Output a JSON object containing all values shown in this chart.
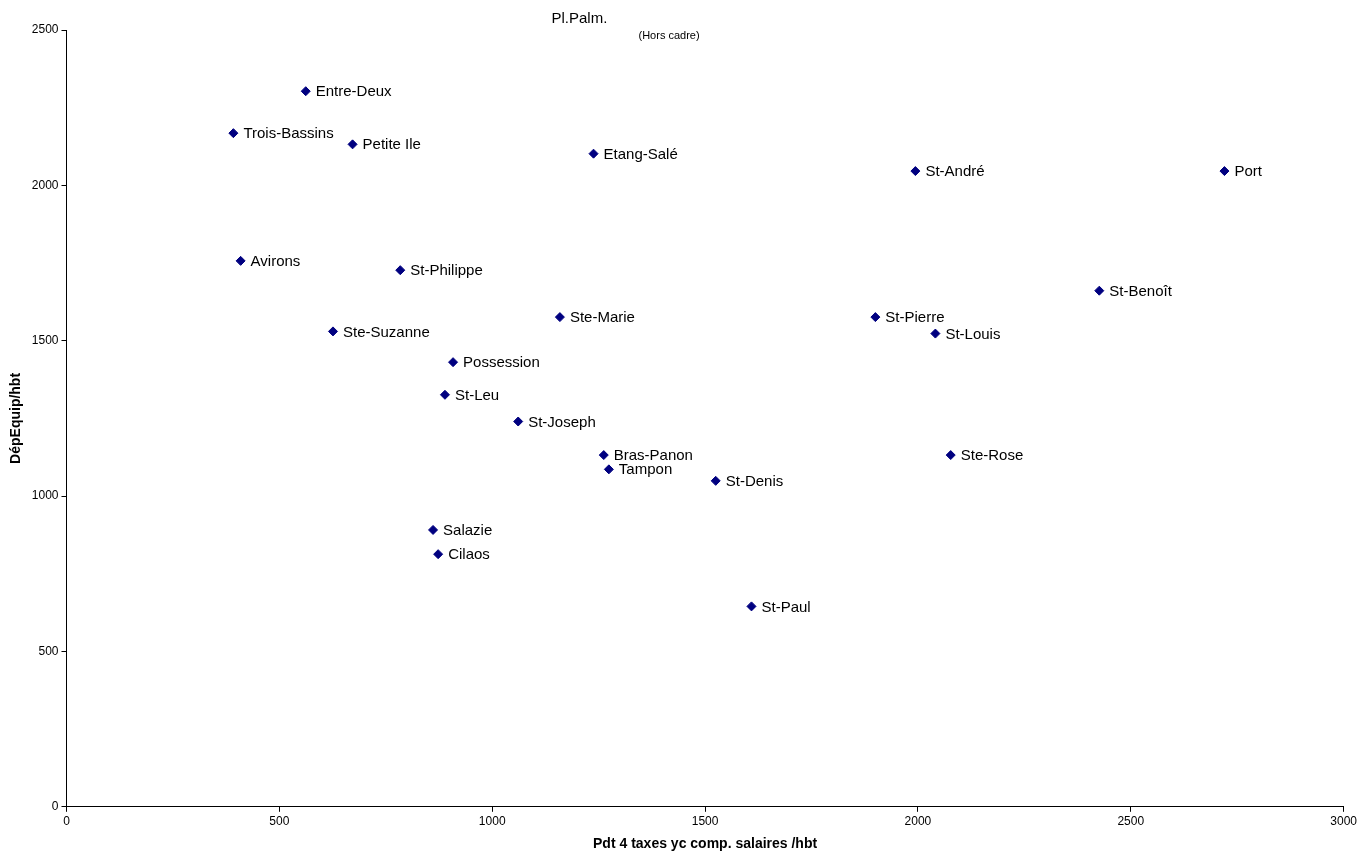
{
  "chart_data": {
    "type": "scatter",
    "xlabel": "Pdt 4 taxes yc comp. salaires /hbt",
    "ylabel": "DépEquip/hbt",
    "annotations": [
      "Pl.Palm.",
      "(Hors cadre)"
    ],
    "xlim": [
      0,
      3000
    ],
    "xticks": [
      0,
      500,
      1000,
      1500,
      2000,
      2500,
      3000
    ],
    "ylim": [
      0,
      2500
    ],
    "yticks": [
      0,
      500,
      1000,
      1500,
      2000,
      2500
    ],
    "grid": false,
    "legend": false,
    "marker": "diamond",
    "series": [
      {
        "name": "Entre-Deux",
        "color": "#000080",
        "x": [
          562
        ],
        "values": [
          2303
        ]
      },
      {
        "name": "Trois-Bassins",
        "color": "#000080",
        "x": [
          392
        ],
        "values": [
          2168
        ]
      },
      {
        "name": "Petite Ile",
        "color": "#000080",
        "x": [
          672
        ],
        "values": [
          2132
        ]
      },
      {
        "name": "Etang-Salé",
        "color": "#000080",
        "x": [
          1238
        ],
        "values": [
          2102
        ]
      },
      {
        "name": "St-André",
        "color": "#000080",
        "x": [
          1994
        ],
        "values": [
          2046
        ]
      },
      {
        "name": "Port",
        "color": "#000080",
        "x": [
          2720
        ],
        "values": [
          2046
        ]
      },
      {
        "name": "Avirons",
        "color": "#000080",
        "x": [
          409
        ],
        "values": [
          1757
        ]
      },
      {
        "name": "St-Philippe",
        "color": "#000080",
        "x": [
          784
        ],
        "values": [
          1727
        ]
      },
      {
        "name": "St-Benoît",
        "color": "#000080",
        "x": [
          2426
        ],
        "values": [
          1661
        ]
      },
      {
        "name": "Ste-Marie",
        "color": "#000080",
        "x": [
          1159
        ],
        "values": [
          1576
        ]
      },
      {
        "name": "St-Pierre",
        "color": "#000080",
        "x": [
          1900
        ],
        "values": [
          1576
        ]
      },
      {
        "name": "St-Louis",
        "color": "#000080",
        "x": [
          2041
        ],
        "values": [
          1523
        ]
      },
      {
        "name": "Ste-Suzanne",
        "color": "#000080",
        "x": [
          626
        ],
        "values": [
          1530
        ]
      },
      {
        "name": "Possession",
        "color": "#000080",
        "x": [
          908
        ],
        "values": [
          1431
        ]
      },
      {
        "name": "St-Leu",
        "color": "#000080",
        "x": [
          889
        ],
        "values": [
          1326
        ]
      },
      {
        "name": "St-Joseph",
        "color": "#000080",
        "x": [
          1061
        ],
        "values": [
          1240
        ]
      },
      {
        "name": "Bras-Panon",
        "color": "#000080",
        "x": [
          1262
        ],
        "values": [
          1132
        ]
      },
      {
        "name": "Ste-Rose",
        "color": "#000080",
        "x": [
          2077
        ],
        "values": [
          1132
        ]
      },
      {
        "name": "Tampon",
        "color": "#000080",
        "x": [
          1274
        ],
        "values": [
          1086
        ]
      },
      {
        "name": "St-Denis",
        "color": "#000080",
        "x": [
          1525
        ],
        "values": [
          1049
        ]
      },
      {
        "name": "Salazie",
        "color": "#000080",
        "x": [
          861
        ],
        "values": [
          891
        ]
      },
      {
        "name": "Cilaos",
        "color": "#000080",
        "x": [
          873
        ],
        "values": [
          813
        ]
      },
      {
        "name": "St-Paul",
        "color": "#000080",
        "x": [
          1609
        ],
        "values": [
          645
        ]
      }
    ]
  }
}
